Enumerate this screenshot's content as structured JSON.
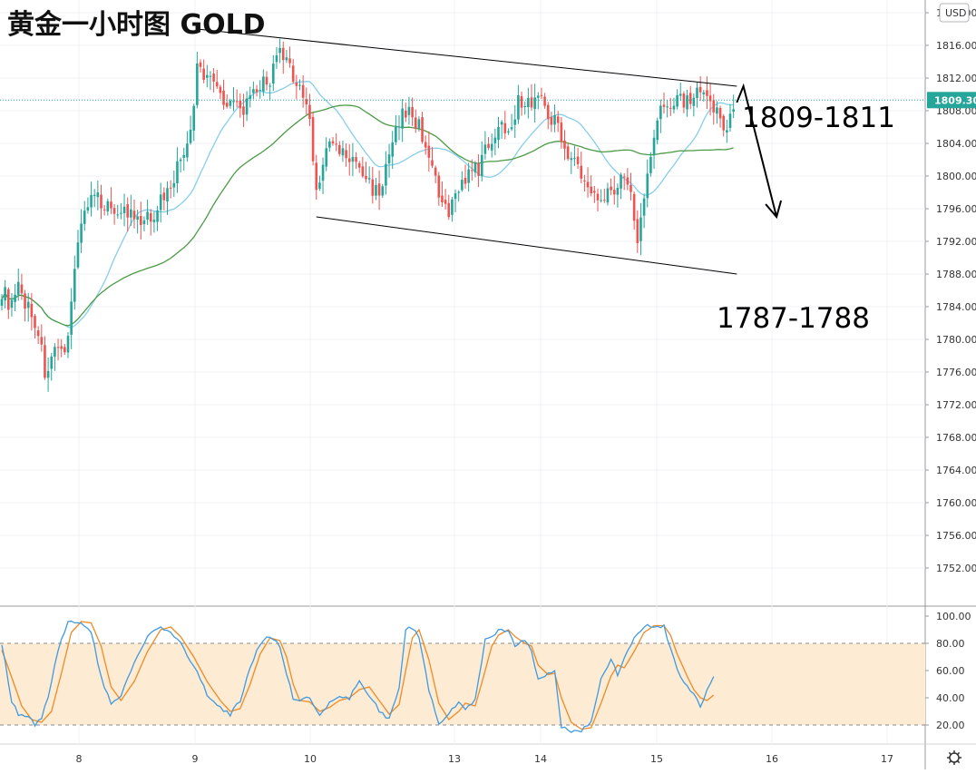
{
  "chart_data": [
    {
      "type": "candlestick",
      "title": "黄金一小时图 GOLD",
      "currency": "USD",
      "current_price": "1809.30",
      "ylim": [
        1751,
        1823
      ],
      "y_ticks": [
        "1752.00",
        "1756.00",
        "1760.00",
        "1764.00",
        "1768.00",
        "1772.00",
        "1776.00",
        "1780.00",
        "1784.00",
        "1788.00",
        "1792.00",
        "1796.00",
        "1800.00",
        "1804.00",
        "1808.00",
        "1812.00",
        "1816.00",
        "1820.00"
      ],
      "x_ticks": [
        "8",
        "9",
        "10",
        "13",
        "14",
        "15",
        "16",
        "17"
      ],
      "colors": {
        "up": "#26a69a",
        "down": "#ef5350",
        "ma_fast": "#87ceeb",
        "ma_slow": "#4c9a46",
        "price_line": "#26a69a",
        "annotation": "#000000",
        "band_fill": "#fdebd3"
      },
      "close_anchors": [
        [
          0,
          1786
        ],
        [
          3,
          1784
        ],
        [
          5,
          1786
        ],
        [
          8,
          1784
        ],
        [
          11,
          1781
        ],
        [
          13,
          1776
        ],
        [
          16,
          1778
        ],
        [
          19,
          1778
        ],
        [
          21,
          1785
        ],
        [
          24,
          1795
        ],
        [
          27,
          1797
        ],
        [
          30,
          1797
        ],
        [
          33,
          1796
        ],
        [
          36,
          1796
        ],
        [
          39,
          1795
        ],
        [
          42,
          1794
        ],
        [
          45,
          1795
        ],
        [
          48,
          1797
        ],
        [
          51,
          1799
        ],
        [
          54,
          1802
        ],
        [
          57,
          1805
        ],
        [
          58,
          1808
        ],
        [
          59,
          1814
        ],
        [
          61,
          1812
        ],
        [
          63,
          1813
        ],
        [
          66,
          1810
        ],
        [
          69,
          1809
        ],
        [
          72,
          1808
        ],
        [
          75,
          1809
        ],
        [
          78,
          1811
        ],
        [
          81,
          1812
        ],
        [
          84,
          1815
        ],
        [
          87,
          1813
        ],
        [
          90,
          1811
        ],
        [
          93,
          1807
        ],
        [
          95,
          1798
        ],
        [
          96,
          1800
        ],
        [
          99,
          1804
        ],
        [
          102,
          1803
        ],
        [
          105,
          1802
        ],
        [
          108,
          1801
        ],
        [
          111,
          1799
        ],
        [
          114,
          1798
        ],
        [
          117,
          1802
        ],
        [
          120,
          1807
        ],
        [
          123,
          1808
        ],
        [
          126,
          1806
        ],
        [
          129,
          1803
        ],
        [
          132,
          1797
        ],
        [
          135,
          1795
        ],
        [
          138,
          1799
        ],
        [
          141,
          1800
        ],
        [
          144,
          1801
        ],
        [
          147,
          1804
        ],
        [
          150,
          1806
        ],
        [
          153,
          1806
        ],
        [
          156,
          1809
        ],
        [
          159,
          1809
        ],
        [
          162,
          1810
        ],
        [
          165,
          1808
        ],
        [
          168,
          1806
        ],
        [
          171,
          1803
        ],
        [
          174,
          1801
        ],
        [
          177,
          1798
        ],
        [
          180,
          1798
        ],
        [
          183,
          1798
        ],
        [
          186,
          1799
        ],
        [
          189,
          1800
        ],
        [
          191,
          1795
        ],
        [
          192,
          1792
        ],
        [
          194,
          1798
        ],
        [
          196,
          1802
        ],
        [
          198,
          1807
        ],
        [
          201,
          1809
        ],
        [
          204,
          1810
        ],
        [
          207,
          1809
        ],
        [
          210,
          1810
        ],
        [
          213,
          1809
        ],
        [
          216,
          1808
        ],
        [
          219,
          1806
        ],
        [
          221,
          1808
        ]
      ],
      "trend_channel": {
        "upper": [
          [
            59,
            1818
          ],
          [
            222,
            1811
          ]
        ],
        "lower": [
          [
            95,
            1795
          ],
          [
            222,
            1788
          ]
        ]
      },
      "forecast_arrow": [
        [
          222,
          1809
        ],
        [
          224,
          1811
        ],
        [
          234,
          1795
        ]
      ],
      "annotations": [
        {
          "text": "1809-1811"
        },
        {
          "text": "1787-1788"
        }
      ],
      "ma_fast": {
        "name": "",
        "period": 20
      },
      "ma_slow": {
        "name": "",
        "period": 50
      }
    },
    {
      "type": "line",
      "name": "stochastic",
      "ylim": [
        15,
        105
      ],
      "y_ticks": [
        "20.00",
        "40.00",
        "60.00",
        "80.00",
        "100.00"
      ],
      "band": [
        20,
        80
      ],
      "k_anchors": [
        [
          0,
          79
        ],
        [
          3,
          38
        ],
        [
          5,
          28
        ],
        [
          8,
          26
        ],
        [
          10,
          20
        ],
        [
          12,
          25
        ],
        [
          14,
          40
        ],
        [
          17,
          75
        ],
        [
          20,
          95
        ],
        [
          24,
          96
        ],
        [
          27,
          88
        ],
        [
          30,
          55
        ],
        [
          33,
          35
        ],
        [
          36,
          42
        ],
        [
          40,
          66
        ],
        [
          44,
          86
        ],
        [
          48,
          92
        ],
        [
          51,
          87
        ],
        [
          54,
          80
        ],
        [
          58,
          64
        ],
        [
          62,
          42
        ],
        [
          66,
          32
        ],
        [
          69,
          28
        ],
        [
          72,
          38
        ],
        [
          75,
          62
        ],
        [
          78,
          80
        ],
        [
          81,
          85
        ],
        [
          84,
          78
        ],
        [
          86,
          58
        ],
        [
          88,
          39
        ],
        [
          90,
          38
        ],
        [
          93,
          40
        ],
        [
          96,
          26
        ],
        [
          99,
          36
        ],
        [
          102,
          41
        ],
        [
          105,
          40
        ],
        [
          108,
          52
        ],
        [
          111,
          42
        ],
        [
          114,
          31
        ],
        [
          117,
          24
        ],
        [
          120,
          48
        ],
        [
          122,
          90
        ],
        [
          124,
          92
        ],
        [
          126,
          85
        ],
        [
          129,
          45
        ],
        [
          132,
          22
        ],
        [
          135,
          27
        ],
        [
          138,
          38
        ],
        [
          140,
          32
        ],
        [
          143,
          38
        ],
        [
          146,
          82
        ],
        [
          148,
          84
        ],
        [
          150,
          90
        ],
        [
          153,
          88
        ],
        [
          155,
          78
        ],
        [
          158,
          83
        ],
        [
          160,
          73
        ],
        [
          162,
          53
        ],
        [
          165,
          58
        ],
        [
          167,
          60
        ],
        [
          169,
          18
        ],
        [
          172,
          16
        ],
        [
          175,
          15
        ],
        [
          178,
          23
        ],
        [
          181,
          55
        ],
        [
          184,
          68
        ],
        [
          186,
          57
        ],
        [
          188,
          68
        ],
        [
          191,
          85
        ],
        [
          194,
          93
        ],
        [
          197,
          93
        ],
        [
          200,
          92
        ],
        [
          202,
          76
        ],
        [
          204,
          60
        ],
        [
          207,
          48
        ],
        [
          209,
          42
        ],
        [
          211,
          33
        ],
        [
          213,
          45
        ],
        [
          215,
          56
        ]
      ],
      "d_anchors": [
        [
          0,
          75
        ],
        [
          3,
          55
        ],
        [
          6,
          34
        ],
        [
          9,
          24
        ],
        [
          12,
          22
        ],
        [
          15,
          30
        ],
        [
          18,
          58
        ],
        [
          21,
          88
        ],
        [
          24,
          96
        ],
        [
          27,
          95
        ],
        [
          30,
          78
        ],
        [
          33,
          48
        ],
        [
          36,
          38
        ],
        [
          40,
          52
        ],
        [
          44,
          74
        ],
        [
          48,
          90
        ],
        [
          51,
          92
        ],
        [
          54,
          85
        ],
        [
          58,
          70
        ],
        [
          62,
          52
        ],
        [
          66,
          38
        ],
        [
          69,
          30
        ],
        [
          72,
          32
        ],
        [
          75,
          50
        ],
        [
          78,
          72
        ],
        [
          81,
          84
        ],
        [
          84,
          82
        ],
        [
          86,
          70
        ],
        [
          88,
          50
        ],
        [
          90,
          38
        ],
        [
          93,
          37
        ],
        [
          96,
          30
        ],
        [
          99,
          33
        ],
        [
          102,
          38
        ],
        [
          105,
          40
        ],
        [
          108,
          46
        ],
        [
          111,
          48
        ],
        [
          114,
          38
        ],
        [
          117,
          28
        ],
        [
          120,
          35
        ],
        [
          122,
          60
        ],
        [
          124,
          84
        ],
        [
          126,
          90
        ],
        [
          129,
          68
        ],
        [
          132,
          36
        ],
        [
          135,
          24
        ],
        [
          138,
          30
        ],
        [
          140,
          36
        ],
        [
          143,
          34
        ],
        [
          146,
          60
        ],
        [
          148,
          78
        ],
        [
          150,
          86
        ],
        [
          153,
          90
        ],
        [
          155,
          85
        ],
        [
          158,
          80
        ],
        [
          160,
          78
        ],
        [
          162,
          64
        ],
        [
          165,
          57
        ],
        [
          167,
          58
        ],
        [
          169,
          40
        ],
        [
          172,
          22
        ],
        [
          175,
          17
        ],
        [
          178,
          18
        ],
        [
          181,
          36
        ],
        [
          184,
          56
        ],
        [
          186,
          64
        ],
        [
          188,
          62
        ],
        [
          191,
          74
        ],
        [
          194,
          88
        ],
        [
          197,
          93
        ],
        [
          200,
          93
        ],
        [
          202,
          86
        ],
        [
          204,
          72
        ],
        [
          207,
          56
        ],
        [
          209,
          46
        ],
        [
          211,
          40
        ],
        [
          213,
          38
        ],
        [
          215,
          42
        ]
      ]
    }
  ]
}
